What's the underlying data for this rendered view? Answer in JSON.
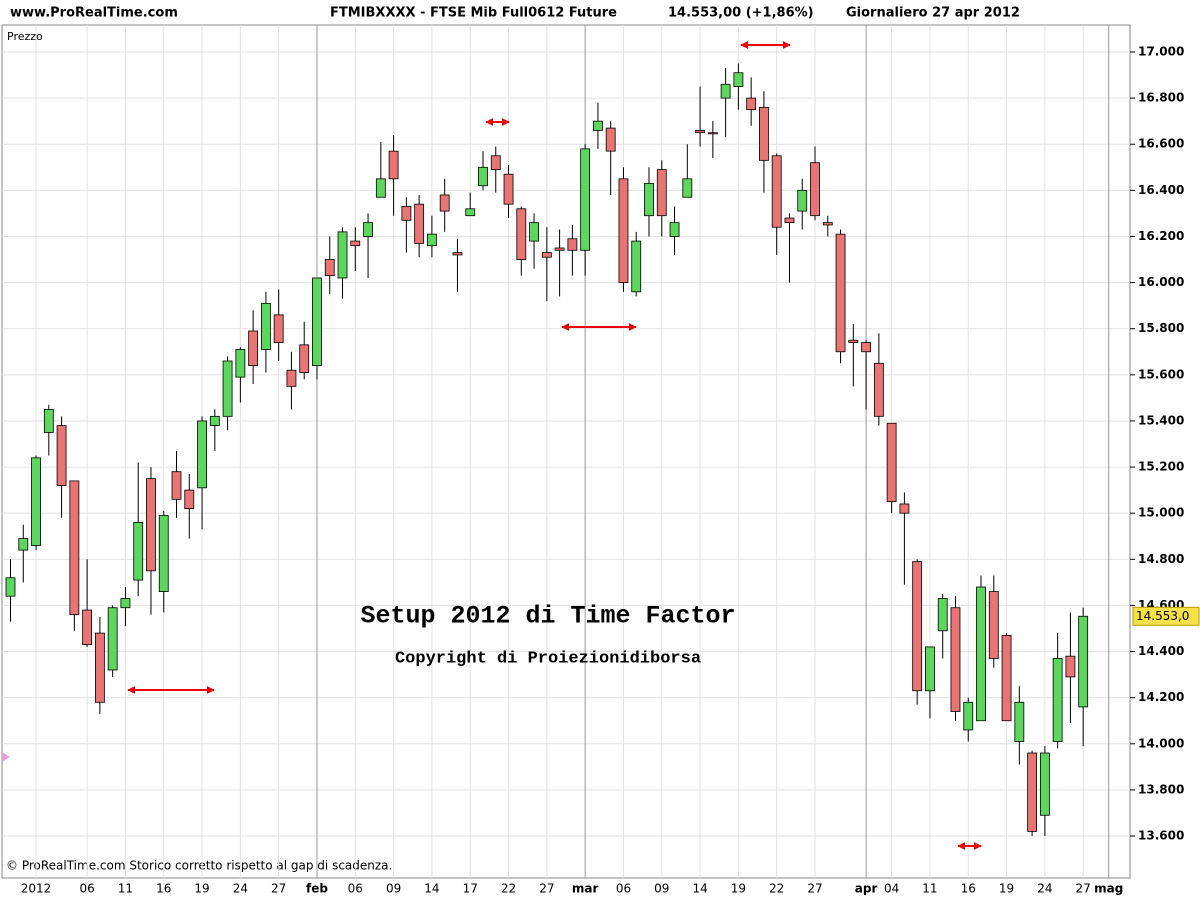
{
  "chart_data": {
    "type": "candlestick",
    "site": "www.ProRealTime.com",
    "title": "FTMIBXXXX - FTSE Mib Full0612 Future",
    "last_quote": "14.553,00 (+1,86%)",
    "period": "Giornaliero  27 apr 2012",
    "y_label": "Prezzo",
    "annotation_title": "Setup 2012 di Time Factor",
    "annotation_subtitle": "Copyright di Proiezionidiborsa",
    "footer": "© ProRealTime.com Storico corretto rispetto al gap di scadenza.",
    "up_color": "#5cd65c",
    "down_color": "#e87474",
    "title_color": "#ff0000",
    "subtitle_color": "#008000",
    "grid": true,
    "categories": [
      null,
      null,
      "2012",
      null,
      null,
      null,
      "06",
      null,
      null,
      "11",
      null,
      null,
      "16",
      null,
      null,
      "19",
      null,
      null,
      "24",
      null,
      null,
      "27",
      null,
      null,
      "feb",
      null,
      null,
      "06",
      null,
      null,
      "09",
      null,
      null,
      "14",
      null,
      null,
      "17",
      null,
      null,
      "22",
      null,
      null,
      "27",
      null,
      null,
      "mar",
      null,
      null,
      "06",
      null,
      null,
      "09",
      null,
      null,
      "14",
      null,
      null,
      "19",
      null,
      null,
      "22",
      null,
      null,
      "27",
      null,
      null,
      null,
      "apr",
      null,
      "04",
      null,
      null,
      "11",
      null,
      null,
      "16",
      null,
      null,
      "19",
      null,
      null,
      "24",
      null,
      null,
      "27",
      null,
      "mag"
    ],
    "open": [
      14640,
      14840,
      14860,
      15350,
      15380,
      15140,
      14580,
      14480,
      14320,
      14590,
      14710,
      15150,
      14660,
      15180,
      15100,
      15110,
      15380,
      15420,
      15590,
      15790,
      15710,
      15860,
      15620,
      15730,
      15640,
      16100,
      16020,
      16180,
      16200,
      16370,
      16570,
      16330,
      16340,
      16160,
      16380,
      16130,
      16290,
      16420,
      16550,
      16470,
      16320,
      16180,
      16130,
      16150,
      16190,
      16140,
      16660,
      16670,
      16450,
      15960,
      16290,
      16490,
      16200,
      16370,
      16660,
      16650,
      16800,
      16850,
      16800,
      16760,
      16550,
      16280,
      16310,
      16520,
      16260,
      16210,
      15750,
      15740,
      15650,
      15390,
      15040,
      14790,
      14230,
      14490,
      14590,
      14060,
      14100,
      14660,
      14470,
      14010,
      13960,
      13690,
      14010,
      14380,
      14160,
      null,
      null
    ],
    "high": [
      14800,
      14950,
      15250,
      15470,
      15420,
      15140,
      14800,
      14550,
      14600,
      14680,
      15220,
      15200,
      15010,
      15270,
      15170,
      15420,
      15450,
      15680,
      15720,
      15880,
      15960,
      15970,
      15700,
      15830,
      16020,
      16200,
      16240,
      16240,
      16300,
      16610,
      16640,
      16370,
      16380,
      16290,
      16450,
      16190,
      16390,
      16570,
      16590,
      16510,
      16330,
      16300,
      16240,
      16230,
      16250,
      16600,
      16780,
      16700,
      16500,
      16220,
      16500,
      16530,
      16330,
      16600,
      16850,
      16700,
      16930,
      16950,
      16890,
      16830,
      16560,
      16300,
      16450,
      16590,
      16290,
      16230,
      15820,
      15750,
      15780,
      15390,
      15090,
      14800,
      14420,
      14650,
      14640,
      14200,
      14730,
      14730,
      14480,
      14250,
      13970,
      13990,
      14480,
      14570,
      14590,
      null,
      null
    ],
    "low": [
      14530,
      14700,
      14840,
      15250,
      14980,
      14490,
      14420,
      14130,
      14290,
      14510,
      14640,
      14560,
      14570,
      14980,
      14890,
      14930,
      15270,
      15360,
      15480,
      15560,
      15610,
      15660,
      15450,
      15580,
      15580,
      15950,
      15930,
      16050,
      16020,
      16370,
      16290,
      16130,
      16110,
      16110,
      16220,
      15960,
      16290,
      16400,
      16390,
      16280,
      16030,
      16060,
      15920,
      15940,
      16030,
      16030,
      16580,
      16380,
      15960,
      15940,
      16200,
      16200,
      16120,
      16370,
      16590,
      16540,
      16630,
      16750,
      16680,
      16390,
      16120,
      16000,
      16230,
      16270,
      16200,
      15650,
      15550,
      15450,
      15380,
      15000,
      14690,
      14170,
      14110,
      14370,
      14100,
      14010,
      14100,
      14330,
      14100,
      13910,
      13600,
      13600,
      13980,
      14090,
      13990,
      null,
      null
    ],
    "close": [
      14720,
      14890,
      15240,
      15450,
      15120,
      14560,
      14430,
      14180,
      14590,
      14630,
      14960,
      14750,
      14990,
      15060,
      15020,
      15400,
      15420,
      15660,
      15710,
      15640,
      15910,
      15740,
      15550,
      15610,
      16020,
      16030,
      16220,
      16160,
      16260,
      16450,
      16450,
      16270,
      16170,
      16210,
      16310,
      16120,
      16320,
      16500,
      16490,
      16340,
      16100,
      16260,
      16110,
      16140,
      16140,
      16580,
      16700,
      16570,
      16000,
      16180,
      16430,
      16290,
      16260,
      16450,
      16650,
      16645,
      16860,
      16910,
      16750,
      16530,
      16240,
      16260,
      16400,
      16290,
      16250,
      15700,
      15740,
      15700,
      15420,
      15050,
      15000,
      14230,
      14420,
      14630,
      14140,
      14180,
      14680,
      14370,
      14100,
      14180,
      13620,
      13960,
      14370,
      14290,
      14553,
      null,
      null
    ],
    "last_price": {
      "value": 14553,
      "label": "14.553,0"
    },
    "ylim": [
      13418,
      17117
    ],
    "yticks": [
      {
        "value": 13600,
        "label": "13.600"
      },
      {
        "value": 13800,
        "label": "13.800"
      },
      {
        "value": 14000,
        "label": "14.000"
      },
      {
        "value": 14200,
        "label": "14.200"
      },
      {
        "value": 14400,
        "label": "14.400"
      },
      {
        "value": 14600,
        "label": "14.600"
      },
      {
        "value": 14800,
        "label": "14.800"
      },
      {
        "value": 15000,
        "label": "15.000"
      },
      {
        "value": 15200,
        "label": "15.200"
      },
      {
        "value": 15400,
        "label": "15.400"
      },
      {
        "value": 15600,
        "label": "15.600"
      },
      {
        "value": 15800,
        "label": "15.800"
      },
      {
        "value": 16000,
        "label": "16.000"
      },
      {
        "value": 16200,
        "label": "16.200"
      },
      {
        "value": 16400,
        "label": "16.400"
      },
      {
        "value": 16600,
        "label": "16.600"
      },
      {
        "value": 16800,
        "label": "16.800"
      },
      {
        "value": 17000,
        "label": "17.000"
      }
    ]
  }
}
